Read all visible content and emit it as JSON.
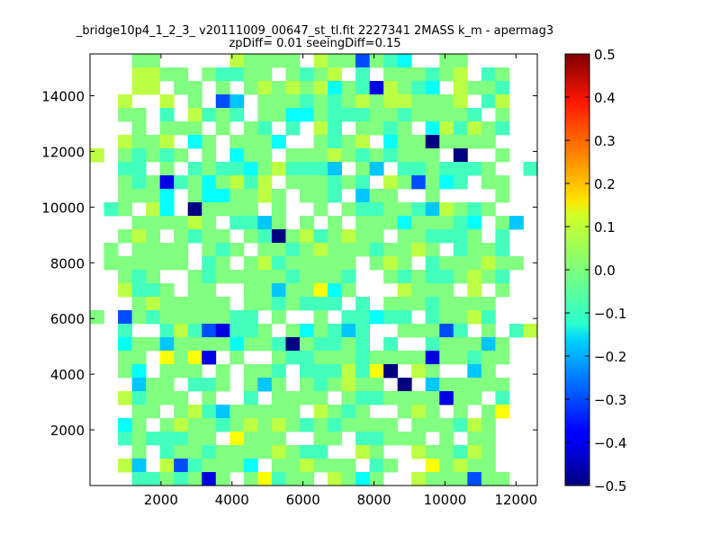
{
  "chart_data": {
    "type": "heatmap",
    "title_line1": "_bridge10p4_1_2_3_ v20111009_00647_st_tl.fit 2227341 2MASS k_m - apermag3",
    "title_line2": "zpDiff= 0.01 seeingDiff=0.15",
    "xlabel": "",
    "ylabel": "",
    "xlim": [
      0,
      12600
    ],
    "ylim": [
      0,
      15500
    ],
    "xticks": [
      2000,
      4000,
      6000,
      8000,
      10000,
      12000
    ],
    "yticks": [
      2000,
      4000,
      6000,
      8000,
      10000,
      12000,
      14000
    ],
    "colorbar": {
      "range": [
        -0.5,
        0.5
      ],
      "colormap": "jet",
      "ticks": [
        "-0.5",
        "-0.4",
        "-0.3",
        "-0.2",
        "-0.1",
        "0.0",
        "0.1",
        "0.2",
        "0.3",
        "0.4",
        "0.5"
      ]
    },
    "grid_encoding": {
      ".": null,
      "g": 0.0,
      "y": 0.06,
      "Y": 0.12,
      "c": -0.06,
      "t": -0.12,
      "C": -0.18,
      "b": -0.3,
      "B": -0.4,
      "N": -0.5
    },
    "grid_rows_top_to_bottom": [
      "...gg.....ygggg.yggbgct..gg.....",
      "...yygg.gccgg.gcgy.c.gggcgy.cg..",
      "...yy.gg.g.gygygytgcBygct.yggc..",
      "..y..y.g.bC.gggcgcgygyygggy.cy..",
      "..gg.c.ycgc.ggttgcccggcggggc.g..",
      "...g.ggg.g.gc.c.yc.ggcg.tycygc..",
      "..yggy.tg.gggt..gcgy.tggNgggg..",
      "y.gcgcg.g.tgg.gggygcgcggg.N..g..",
      "..cc.g.cgcctgycccC.gC.ccgcccg..c",
      "..gcgBcgtgycy.gggcgc.ygbgtc.gg..",
      "..gggt.gttggyg.ggc.Cgg..g....g..",
      ".cg.yt.Ngggg.g..g.gccggcCygcg...",
      "...ggggyg.ccCg.g.g.gggtgggct.gC.",
      "..gyg.gcgg.gcNgycgygg.ggcccg.c..",
      ".g.gggg.gcg.ggcgygggcggyg.cggc..",
      ".gggggg.cg.gycggggg.gyg.cgggygg..",
      "..gcg..gcgggggcgggc..gcgccgygc..",
      "..yccg.gg..ggCggYtg...yggg.y.g..",
      "...gyggggg.ggcgccc.c.gggcgggg...",
      "g.bgcgggggcc.g..g.cctcc.cggyc...",
      "..c..cycbBccg.gtgcCc..gggbc.g.cy",
      "..tggCggggtggcNgccgc.c..cgggCg..",
      "..gg.YgYB.g..gccgggcggggBggcgg..",
      "..gt.ggg.g.ggc.cccycYN.yg..Cg...",
      "...Cgg.ccg.gCg.gcgygg.N.Cggggg..",
      "..ycggg.g..c.gggg.gccggggBgg.c..",
      "...gg.gycCggggg.ygcg..gyg.g.gY..",
      "..tg.gyggcgygygcgcgggg.gggcyg...",
      "..cgcccgg.Yggg..gg.ccggg.g.gg...",
      "...g.cggcggggygcc..yg..yggcyg...",
      "..yC.ybcgggt.ggyggg.cg..Ygygg...",
      "...ccgcgBg.gYcgg.ygtg..ygggbgg.."
    ]
  }
}
